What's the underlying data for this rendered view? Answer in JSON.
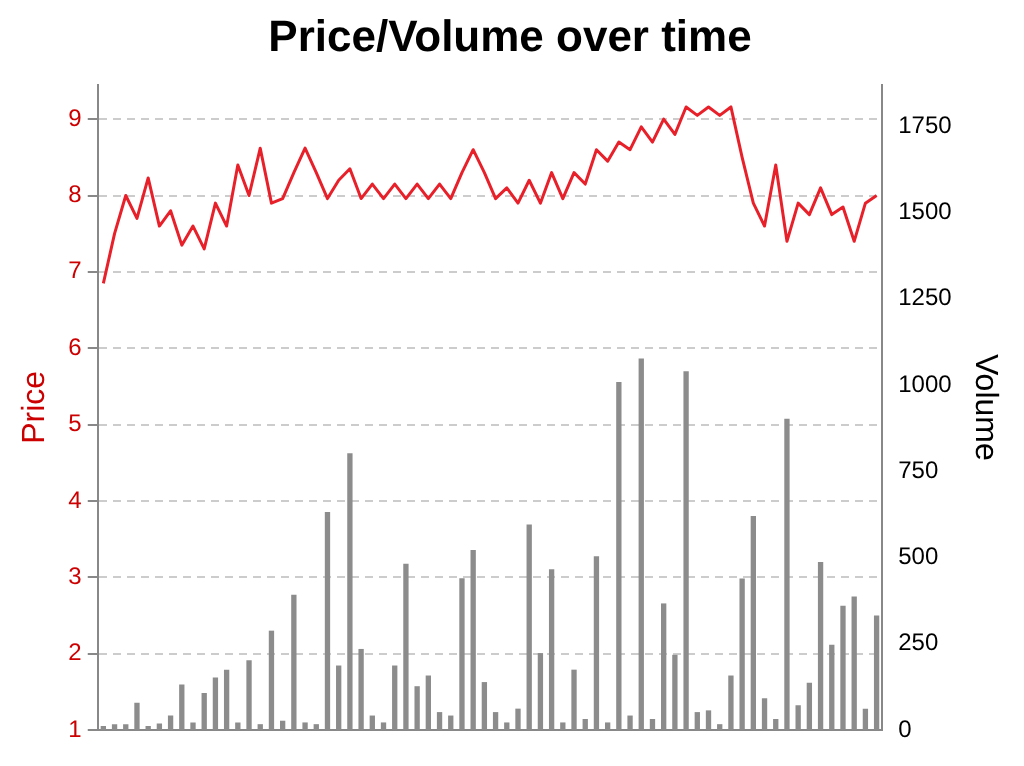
{
  "chart_data": {
    "type": "line",
    "title": "Price/Volume over time",
    "ylabel": "Price",
    "y2label": "Volume",
    "categories": [
      null,
      null,
      null,
      null,
      null,
      null,
      null,
      null,
      null,
      null,
      null,
      null,
      null,
      null,
      null,
      null,
      null,
      null,
      null,
      null,
      null,
      null,
      null,
      null,
      null,
      null,
      null,
      null,
      null,
      null,
      null,
      null,
      null,
      null,
      null,
      null,
      null,
      null,
      null,
      null,
      null,
      null,
      null,
      null,
      null,
      null,
      null,
      null,
      null,
      null,
      null,
      null,
      null,
      null,
      null,
      null,
      null,
      null,
      null,
      null,
      null,
      null,
      null,
      null,
      null,
      null,
      null,
      null,
      null,
      null
    ],
    "series": [
      {
        "name": null,
        "axis": "y",
        "color": "#e8202a",
        "values": [
          6.85,
          7.5,
          8.0,
          7.7,
          8.23,
          7.6,
          7.8,
          7.35,
          7.6,
          7.3,
          7.9,
          7.6,
          8.4,
          8.0,
          8.62,
          7.9,
          7.96,
          8.3,
          8.62,
          8.3,
          7.96,
          8.2,
          8.35,
          7.96,
          8.15,
          7.96,
          8.15,
          7.96,
          8.15,
          7.96,
          8.15,
          7.96,
          8.3,
          8.6,
          8.3,
          7.96,
          8.1,
          7.9,
          8.2,
          7.9,
          8.3,
          7.96,
          8.3,
          8.15,
          8.6,
          8.45,
          8.7,
          8.6,
          8.9,
          8.7,
          9.0,
          8.8,
          9.16,
          9.05,
          9.16,
          9.05,
          9.16,
          8.5,
          7.9,
          7.6,
          8.4,
          7.4,
          7.9,
          7.75,
          8.1,
          7.75,
          7.85,
          7.4,
          7.9,
          8.0
        ]
      },
      {
        "name": null,
        "type": "bar",
        "axis": "y2",
        "color": "#8c8c8c",
        "values": [
          10,
          15,
          15,
          77,
          10,
          17,
          40,
          130,
          20,
          105,
          150,
          173,
          20,
          200,
          15,
          286,
          25,
          390,
          20,
          15,
          630,
          185,
          800,
          233,
          40,
          20,
          185,
          480,
          125,
          156,
          50,
          40,
          438,
          520,
          137,
          50,
          20,
          60,
          594,
          221,
          464,
          20,
          173,
          30,
          502,
          20,
          1007,
          40,
          1075,
          30,
          365,
          216,
          1038,
          50,
          55,
          15,
          156,
          437,
          618,
          90,
          30,
          900,
          70,
          135,
          485,
          245,
          358,
          385,
          60,
          330
        ]
      }
    ],
    "ylim": [
      1,
      9.45
    ],
    "yticks": [
      1,
      2,
      3,
      4,
      5,
      6,
      7,
      8,
      9
    ],
    "y2lim": [
      0,
      1870
    ],
    "y2ticks": [
      0,
      250,
      500,
      750,
      1000,
      1250,
      1500,
      1750
    ],
    "grid": "y",
    "line_style": "solid",
    "marker": "none",
    "tick_labels": "y",
    "legend": false
  }
}
